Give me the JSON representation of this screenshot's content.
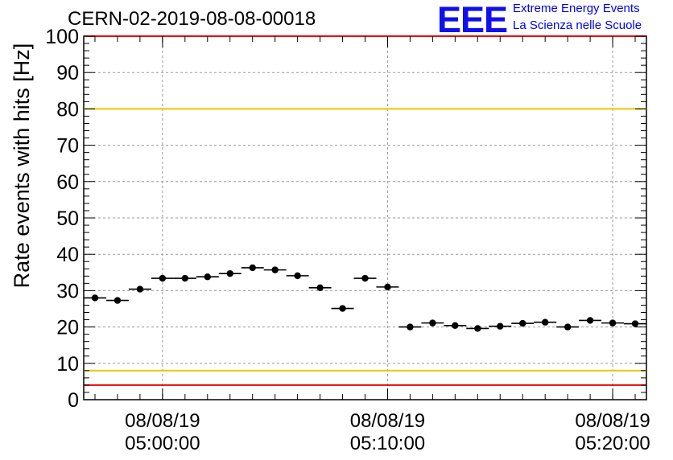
{
  "header": {
    "run_title": "CERN-02-2019-08-08-00018",
    "logo_text": "EEE",
    "logo_line1": "Extreme Energy Events",
    "logo_line2": "La Scienza nelle Scuole"
  },
  "colors": {
    "logo": "#1010ee",
    "limit_red": "#ee0000",
    "limit_yellow": "#e8c800",
    "points": "#000000",
    "grid": "#999999"
  },
  "chart_data": {
    "type": "scatter",
    "title": "CERN-02-2019-08-08-00018",
    "ylabel": "Rate events with hits [Hz]",
    "xlabel": "",
    "ylim": [
      0,
      100
    ],
    "yticks": [
      0,
      10,
      20,
      30,
      40,
      50,
      60,
      70,
      80,
      90,
      100
    ],
    "xlim": [
      "08/08/19 04:56:30",
      "08/08/19 05:21:30"
    ],
    "xticks": [
      {
        "date": "08/08/19",
        "time": "05:00:00"
      },
      {
        "date": "08/08/19",
        "time": "05:10:00"
      },
      {
        "date": "08/08/19",
        "time": "05:20:00"
      }
    ],
    "grid": true,
    "bin_width_seconds": 60,
    "reference_lines": [
      {
        "y": 100,
        "color": "red"
      },
      {
        "y": 80,
        "color": "yellow"
      },
      {
        "y": 8,
        "color": "yellow"
      },
      {
        "y": 4,
        "color": "red"
      }
    ],
    "points": [
      {
        "x": "04:57:00",
        "y": 28.0
      },
      {
        "x": "04:58:00",
        "y": 27.3
      },
      {
        "x": "04:59:00",
        "y": 30.4
      },
      {
        "x": "05:00:00",
        "y": 33.4
      },
      {
        "x": "05:01:00",
        "y": 33.4
      },
      {
        "x": "05:02:00",
        "y": 33.8
      },
      {
        "x": "05:03:00",
        "y": 34.7
      },
      {
        "x": "05:04:00",
        "y": 36.3
      },
      {
        "x": "05:05:00",
        "y": 35.7
      },
      {
        "x": "05:06:00",
        "y": 34.1
      },
      {
        "x": "05:07:00",
        "y": 30.8
      },
      {
        "x": "05:08:00",
        "y": 25.1
      },
      {
        "x": "05:09:00",
        "y": 33.4
      },
      {
        "x": "05:10:00",
        "y": 31.0
      },
      {
        "x": "05:11:00",
        "y": 20.0
      },
      {
        "x": "05:12:00",
        "y": 21.1
      },
      {
        "x": "05:13:00",
        "y": 20.4
      },
      {
        "x": "05:14:00",
        "y": 19.6
      },
      {
        "x": "05:15:00",
        "y": 20.2
      },
      {
        "x": "05:16:00",
        "y": 21.0
      },
      {
        "x": "05:17:00",
        "y": 21.3
      },
      {
        "x": "05:18:00",
        "y": 20.0
      },
      {
        "x": "05:19:00",
        "y": 21.8
      },
      {
        "x": "05:20:00",
        "y": 21.1
      },
      {
        "x": "05:21:00",
        "y": 20.9
      }
    ]
  }
}
